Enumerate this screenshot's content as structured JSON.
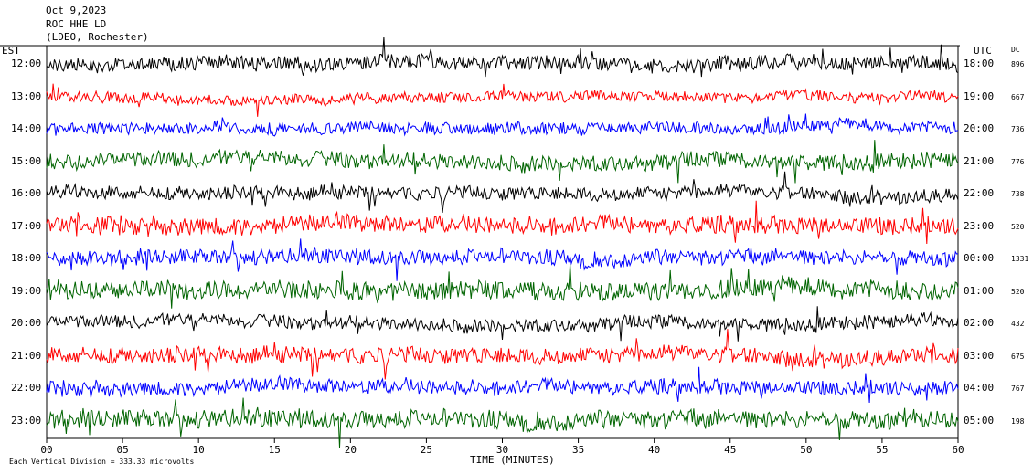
{
  "header": {
    "date": "Oct 9,2023",
    "station": "ROC HHE LD",
    "network": "(LDEO, Rochester)"
  },
  "left_axis_title": "EST",
  "right_axis_title": "UTC",
  "dc_title": "DC",
  "footer": {
    "scale_note": "Each Vertical Division = 333.33 microvolts",
    "xlabel": "TIME (MINUTES)"
  },
  "colors": {
    "black": "#000000",
    "red": "#ff0000",
    "blue": "#0000ff",
    "green": "#006400"
  },
  "chart_data": {
    "type": "line",
    "title": "ROC HHE LD",
    "xlabel": "TIME (MINUTES)",
    "xlim": [
      0,
      60
    ],
    "x_ticks": [
      "00",
      "05",
      "10",
      "15",
      "20",
      "25",
      "30",
      "35",
      "40",
      "45",
      "50",
      "55",
      "60"
    ],
    "series": [
      {
        "est": "12:00",
        "utc": "18:00",
        "dc": "896",
        "color": "#000000",
        "amp": 1.0
      },
      {
        "est": "13:00",
        "utc": "19:00",
        "dc": "667",
        "color": "#ff0000",
        "amp": 0.7
      },
      {
        "est": "14:00",
        "utc": "20:00",
        "dc": "736",
        "color": "#0000ff",
        "amp": 0.8
      },
      {
        "est": "15:00",
        "utc": "21:00",
        "dc": "776",
        "color": "#006400",
        "amp": 1.1
      },
      {
        "est": "16:00",
        "utc": "22:00",
        "dc": "738",
        "color": "#000000",
        "amp": 0.9
      },
      {
        "est": "17:00",
        "utc": "23:00",
        "dc": "520",
        "color": "#ff0000",
        "amp": 1.2
      },
      {
        "est": "18:00",
        "utc": "00:00",
        "dc": "1331",
        "color": "#0000ff",
        "amp": 1.0
      },
      {
        "est": "19:00",
        "utc": "01:00",
        "dc": "520",
        "color": "#006400",
        "amp": 1.3
      },
      {
        "est": "20:00",
        "utc": "02:00",
        "dc": "432",
        "color": "#000000",
        "amp": 0.9
      },
      {
        "est": "21:00",
        "utc": "03:00",
        "dc": "675",
        "color": "#ff0000",
        "amp": 1.1
      },
      {
        "est": "22:00",
        "utc": "04:00",
        "dc": "767",
        "color": "#0000ff",
        "amp": 1.0
      },
      {
        "est": "23:00",
        "utc": "05:00",
        "dc": "198",
        "color": "#006400",
        "amp": 1.2
      }
    ]
  }
}
